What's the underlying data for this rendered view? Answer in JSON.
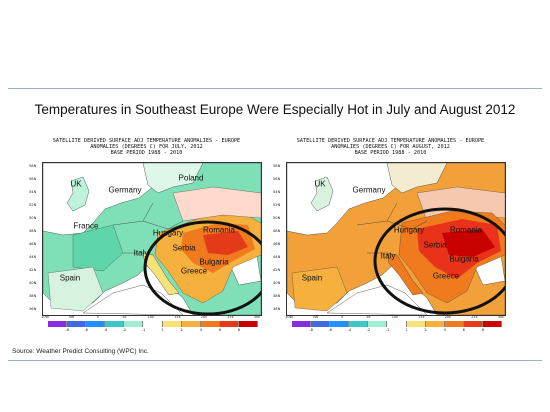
{
  "slide": {
    "title": "Temperatures in Southeast Europe  Were Especially Hot in July and August 2012",
    "source": "Source: Weather Predict Consulting (WPC) Inc."
  },
  "panels": [
    {
      "header": {
        "line1": "SATELLITE DERIVED SURFACE ADJ TEMPERATURE ANOMALIES - EUROPE",
        "line2": "ANOMALIES (DEGREES C) FOR JULY, 2012",
        "line3": "BASE PERIOD 1988 - 2010"
      },
      "countries": [
        "UK",
        "Germany",
        "Poland",
        "France",
        "Hungary",
        "Romania",
        "Serbia",
        "Bulgaria",
        "Italy",
        "Spain",
        "Greece"
      ]
    },
    {
      "header": {
        "line1": "SATELLITE DERIVED SURFACE ADJ TEMPERATURE ANOMALIES - EUROPE",
        "line2": "ANOMALIES (DEGREES C) FOR AUGUST, 2012",
        "line3": "BASE PERIOD 1988 - 2010"
      },
      "countries": [
        "UK",
        "Germany",
        "Hungary",
        "Romania",
        "Serbia",
        "Bulgaria",
        "Italy",
        "Spain",
        "Greece"
      ]
    }
  ],
  "lat_labels": [
    "58N",
    "56N",
    "54N",
    "52N",
    "50N",
    "48N",
    "46N",
    "44N",
    "42N",
    "40N",
    "38N",
    "36N"
  ],
  "lon_labels": [
    "10W",
    "5W",
    "0",
    "5E",
    "10E",
    "15E",
    "20E",
    "25E",
    "30E"
  ],
  "legend": {
    "labels": [
      "-8",
      "-6",
      "-4",
      "-2",
      "-1",
      "1",
      "2",
      "4",
      "6",
      "8"
    ],
    "colors": [
      "#8a2be2",
      "#4169e1",
      "#1e90ff",
      "#3cc8c8",
      "#9ff0d0",
      "#ffffff",
      "#f7e27a",
      "#f5b03d",
      "#f07a1e",
      "#e43a1a",
      "#cc0000"
    ]
  },
  "colors": {
    "july_base": "#7fe0b8",
    "july_hot": "#f07a1e",
    "august_base": "#f2a03a",
    "august_hot": "#e8321a",
    "sea": "#ffffff",
    "circle": "#111111"
  }
}
